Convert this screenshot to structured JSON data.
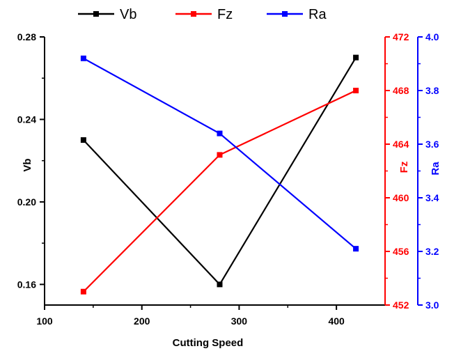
{
  "chart_data": {
    "type": "line",
    "xlabel": "Cutting Speed",
    "x": [
      140,
      280,
      420
    ],
    "xlim": [
      100,
      450
    ],
    "xticks": [
      100,
      200,
      300,
      400
    ],
    "grid": false,
    "legend_position": "top-center",
    "axes": {
      "left": {
        "label": "Vb",
        "ylim": [
          0.15,
          0.28
        ],
        "ticks": [
          "0.16",
          "0.20",
          "0.24",
          "0.28"
        ],
        "color": "#000000"
      },
      "right1": {
        "label": "Fz",
        "ylim": [
          452,
          472
        ],
        "ticks": [
          "452",
          "456",
          "460",
          "464",
          "468",
          "472"
        ],
        "color": "#ff0000"
      },
      "right2": {
        "label": "Ra",
        "ylim": [
          3.0,
          4.0
        ],
        "ticks": [
          "3.0",
          "3.2",
          "3.4",
          "3.6",
          "3.8",
          "4.0"
        ],
        "color": "#0000ff"
      }
    },
    "series": [
      {
        "name": "Vb",
        "axis": "left",
        "color": "#000000",
        "values": [
          0.23,
          0.16,
          0.27
        ]
      },
      {
        "name": "Fz",
        "axis": "right1",
        "color": "#ff0000",
        "values": [
          453.0,
          463.2,
          468.0
        ]
      },
      {
        "name": "Ra",
        "axis": "right2",
        "color": "#0000ff",
        "values": [
          3.92,
          3.64,
          3.21
        ]
      }
    ]
  }
}
